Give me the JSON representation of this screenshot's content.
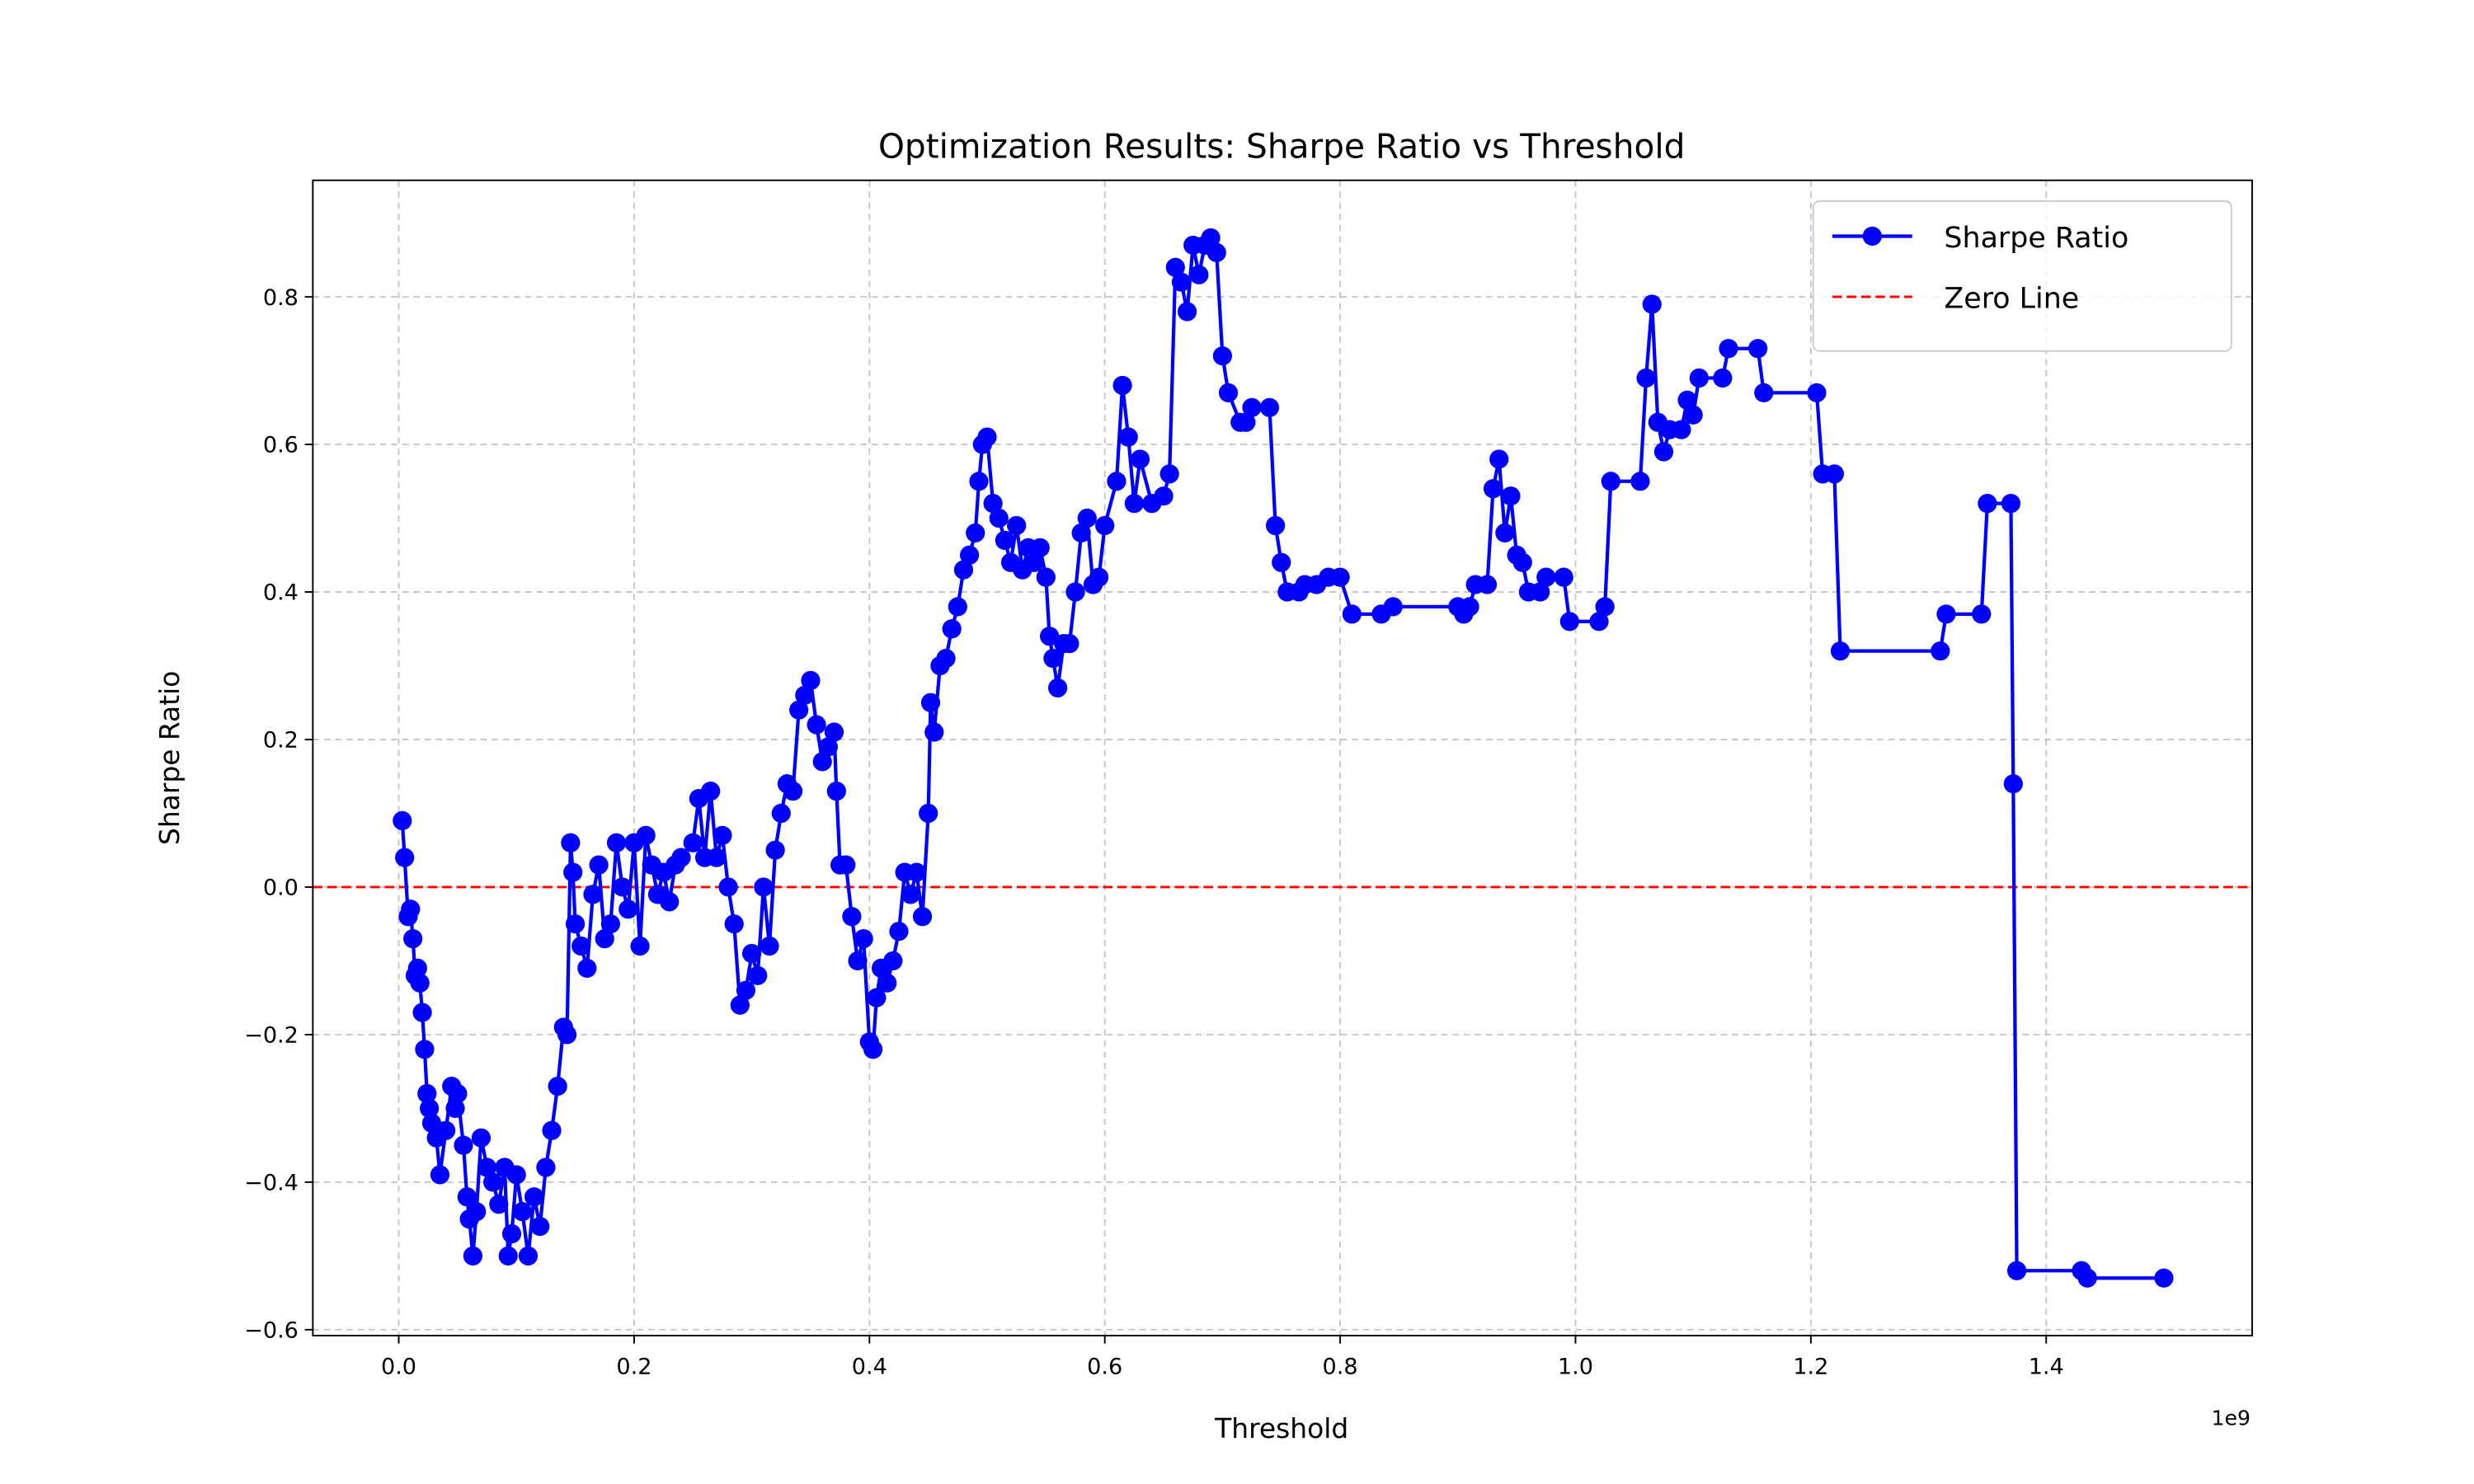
{
  "chart_data": {
    "type": "line",
    "title": "Optimization Results: Sharpe Ratio vs Threshold",
    "xlabel": "Threshold",
    "ylabel": "Sharpe Ratio",
    "x_offset_label": "1e9",
    "x": [
      0.003,
      0.005,
      0.008,
      0.01,
      0.012,
      0.014,
      0.016,
      0.018,
      0.02,
      0.022,
      0.024,
      0.026,
      0.028,
      0.032,
      0.035,
      0.04,
      0.045,
      0.048,
      0.05,
      0.055,
      0.058,
      0.06,
      0.063,
      0.066,
      0.07,
      0.075,
      0.08,
      0.085,
      0.09,
      0.093,
      0.096,
      0.1,
      0.105,
      0.11,
      0.115,
      0.12,
      0.125,
      0.13,
      0.135,
      0.14,
      0.143,
      0.146,
      0.148,
      0.15,
      0.155,
      0.16,
      0.165,
      0.17,
      0.175,
      0.18,
      0.185,
      0.19,
      0.195,
      0.2,
      0.205,
      0.21,
      0.215,
      0.22,
      0.225,
      0.23,
      0.235,
      0.24,
      0.25,
      0.255,
      0.26,
      0.265,
      0.27,
      0.275,
      0.28,
      0.285,
      0.29,
      0.295,
      0.3,
      0.305,
      0.31,
      0.315,
      0.32,
      0.325,
      0.33,
      0.335,
      0.34,
      0.345,
      0.35,
      0.355,
      0.36,
      0.365,
      0.37,
      0.372,
      0.375,
      0.38,
      0.385,
      0.39,
      0.395,
      0.4,
      0.403,
      0.406,
      0.41,
      0.415,
      0.42,
      0.425,
      0.43,
      0.435,
      0.44,
      0.445,
      0.45,
      0.452,
      0.455,
      0.46,
      0.465,
      0.47,
      0.475,
      0.48,
      0.485,
      0.49,
      0.493,
      0.496,
      0.5,
      0.505,
      0.51,
      0.515,
      0.52,
      0.525,
      0.53,
      0.535,
      0.54,
      0.545,
      0.55,
      0.553,
      0.556,
      0.56,
      0.565,
      0.57,
      0.575,
      0.58,
      0.585,
      0.59,
      0.595,
      0.6,
      0.61,
      0.615,
      0.62,
      0.625,
      0.63,
      0.64,
      0.65,
      0.655,
      0.66,
      0.665,
      0.67,
      0.675,
      0.68,
      0.685,
      0.69,
      0.695,
      0.7,
      0.705,
      0.715,
      0.72,
      0.725,
      0.74,
      0.745,
      0.75,
      0.755,
      0.765,
      0.77,
      0.78,
      0.79,
      0.8,
      0.81,
      0.835,
      0.845,
      0.9,
      0.905,
      0.91,
      0.915,
      0.925,
      0.93,
      0.935,
      0.94,
      0.945,
      0.95,
      0.955,
      0.96,
      0.97,
      0.975,
      0.99,
      0.995,
      1.02,
      1.025,
      1.03,
      1.055,
      1.06,
      1.065,
      1.07,
      1.075,
      1.08,
      1.09,
      1.095,
      1.1,
      1.105,
      1.125,
      1.13,
      1.155,
      1.16,
      1.205,
      1.21,
      1.22,
      1.225,
      1.31,
      1.315,
      1.345,
      1.35,
      1.37,
      1.372,
      1.375,
      1.43,
      1.435,
      1.5
    ],
    "series": [
      {
        "name": "Sharpe Ratio",
        "color": "#0000ff",
        "marker": "o",
        "values": [
          0.09,
          0.04,
          -0.04,
          -0.03,
          -0.07,
          -0.12,
          -0.11,
          -0.13,
          -0.17,
          -0.22,
          -0.28,
          -0.3,
          -0.32,
          -0.34,
          -0.39,
          -0.33,
          -0.27,
          -0.3,
          -0.28,
          -0.35,
          -0.42,
          -0.45,
          -0.5,
          -0.44,
          -0.34,
          -0.38,
          -0.4,
          -0.43,
          -0.38,
          -0.5,
          -0.47,
          -0.39,
          -0.44,
          -0.5,
          -0.42,
          -0.46,
          -0.38,
          -0.33,
          -0.27,
          -0.19,
          -0.2,
          0.06,
          0.02,
          -0.05,
          -0.08,
          -0.11,
          -0.01,
          0.03,
          -0.07,
          -0.05,
          0.06,
          0.0,
          -0.03,
          0.06,
          -0.08,
          0.07,
          0.03,
          -0.01,
          0.02,
          -0.02,
          0.03,
          0.04,
          0.06,
          0.12,
          0.04,
          0.13,
          0.04,
          0.07,
          0.0,
          -0.05,
          -0.16,
          -0.14,
          -0.09,
          -0.12,
          0.0,
          -0.08,
          0.05,
          0.1,
          0.14,
          0.13,
          0.24,
          0.26,
          0.28,
          0.22,
          0.17,
          0.19,
          0.21,
          0.13,
          0.03,
          0.03,
          -0.04,
          -0.1,
          -0.07,
          -0.21,
          -0.22,
          -0.15,
          -0.11,
          -0.13,
          -0.1,
          -0.06,
          0.02,
          -0.01,
          0.02,
          -0.04,
          0.1,
          0.25,
          0.21,
          0.3,
          0.31,
          0.35,
          0.38,
          0.43,
          0.45,
          0.48,
          0.55,
          0.6,
          0.61,
          0.52,
          0.5,
          0.47,
          0.44,
          0.49,
          0.43,
          0.46,
          0.44,
          0.46,
          0.42,
          0.34,
          0.31,
          0.27,
          0.33,
          0.33,
          0.4,
          0.48,
          0.5,
          0.41,
          0.42,
          0.49,
          0.55,
          0.68,
          0.61,
          0.52,
          0.58,
          0.52,
          0.53,
          0.56,
          0.84,
          0.82,
          0.78,
          0.87,
          0.83,
          0.87,
          0.88,
          0.86,
          0.72,
          0.67,
          0.63,
          0.63,
          0.65,
          0.65,
          0.49,
          0.44,
          0.4,
          0.4,
          0.41,
          0.41,
          0.42,
          0.42,
          0.37,
          0.37,
          0.38,
          0.38,
          0.37,
          0.38,
          0.41,
          0.41,
          0.54,
          0.58,
          0.48,
          0.53,
          0.45,
          0.44,
          0.4,
          0.4,
          0.42,
          0.42,
          0.36,
          0.36,
          0.38,
          0.55,
          0.55,
          0.69,
          0.79,
          0.63,
          0.59,
          0.62,
          0.62,
          0.66,
          0.64,
          0.69,
          0.69,
          0.73,
          0.73,
          0.67,
          0.67,
          0.56,
          0.56,
          0.32,
          0.32,
          0.37,
          0.37,
          0.52,
          0.52,
          0.14,
          -0.52,
          -0.52,
          -0.53,
          -0.53
        ]
      }
    ],
    "hlines": [
      {
        "name": "Zero Line",
        "value": 0,
        "color": "#ff0000",
        "style": "dashed"
      }
    ],
    "xlim": [
      -0.073,
      1.575
    ],
    "ylim": [
      -0.608,
      0.958
    ],
    "xticks": [
      {
        "value": 0,
        "label": "0.0"
      },
      {
        "value": 0.2,
        "label": "0.2"
      },
      {
        "value": 0.4,
        "label": "0.4"
      },
      {
        "value": 0.6,
        "label": "0.6"
      },
      {
        "value": 0.8,
        "label": "0.8"
      },
      {
        "value": 1.0,
        "label": "1.0"
      },
      {
        "value": 1.2,
        "label": "1.2"
      },
      {
        "value": 1.4,
        "label": "1.4"
      }
    ],
    "yticks": [
      {
        "value": -0.6,
        "label": "−0.6"
      },
      {
        "value": -0.4,
        "label": "−0.4"
      },
      {
        "value": -0.2,
        "label": "−0.2"
      },
      {
        "value": 0,
        "label": "0.0"
      },
      {
        "value": 0.2,
        "label": "0.2"
      },
      {
        "value": 0.4,
        "label": "0.4"
      },
      {
        "value": 0.6,
        "label": "0.6"
      },
      {
        "value": 0.8,
        "label": "0.8"
      }
    ],
    "grid": true,
    "legend": "upper right"
  }
}
